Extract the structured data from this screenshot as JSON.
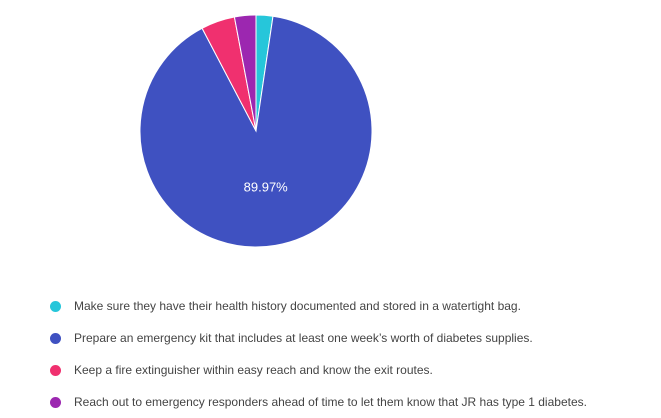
{
  "chart_data": {
    "type": "pie",
    "start_angle_deg": 0,
    "direction": "clockwise",
    "legend_position": "bottom",
    "slices": [
      {
        "label": "Make sure they have their health history documented and stored in a watertight bag.",
        "value": 2.34,
        "color": "#26c6da"
      },
      {
        "label": "Prepare an emergency kit that includes at least one week’s worth of diabetes supplies.",
        "value": 89.97,
        "color": "#3f51c1",
        "data_label": "89.97%"
      },
      {
        "label": "Keep a fire extinguisher within easy reach and know the exit routes.",
        "value": 4.71,
        "color": "#f0306f"
      },
      {
        "label": "Reach out to emergency responders ahead of time to let them know that JR has type 1 diabetes.",
        "value": 2.98,
        "color": "#9c27b0"
      }
    ]
  }
}
